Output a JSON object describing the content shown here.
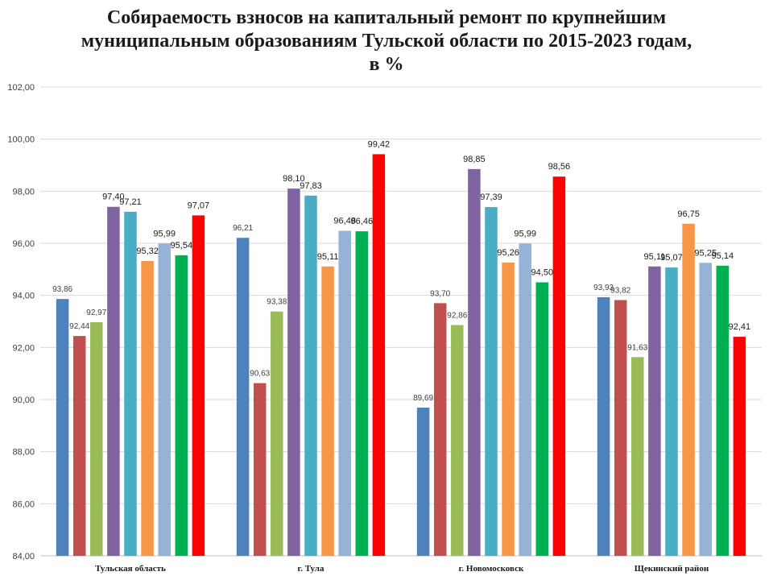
{
  "chart_data": {
    "type": "bar",
    "title_lines": [
      "Собираемость взносов на капитальный ремонт по крупнейшим",
      "муниципальным образованиям Тульской области по 2015-2023 годам,",
      "в %"
    ],
    "categories": [
      "Тульская область",
      "г. Тула",
      "г. Новомосковск",
      "Щекинский район"
    ],
    "series": [
      {
        "color": "#4f81bd",
        "values": [
          93.86,
          96.21,
          89.69,
          93.93
        ],
        "labels": [
          "93,86",
          "96,21",
          "89,69",
          "93,93"
        ]
      },
      {
        "color": "#c0504d",
        "values": [
          92.44,
          90.63,
          93.7,
          93.82
        ],
        "labels": [
          "92,44",
          "90,63",
          "93,70",
          "93,82"
        ]
      },
      {
        "color": "#9bbb59",
        "values": [
          92.97,
          93.38,
          92.86,
          91.63
        ],
        "labels": [
          "92,97",
          "93,38",
          "92,86",
          "91,63"
        ]
      },
      {
        "color": "#8064a2",
        "values": [
          97.4,
          98.1,
          98.85,
          95.11
        ],
        "labels": [
          "97,40",
          "98,10",
          "98,85",
          "95,11"
        ]
      },
      {
        "color": "#4bacc6",
        "values": [
          97.21,
          97.83,
          97.39,
          95.07
        ],
        "labels": [
          "97,21",
          "97,83",
          "97,39",
          "95,07"
        ]
      },
      {
        "color": "#f79646",
        "values": [
          95.32,
          95.11,
          95.26,
          96.75
        ],
        "labels": [
          "95,32",
          "95,11",
          "95,26",
          "96,75"
        ]
      },
      {
        "color": "#95b3d7",
        "values": [
          95.99,
          96.48,
          95.99,
          95.25
        ],
        "labels": [
          "95,99",
          "96,48",
          "95,99",
          "95,25"
        ]
      },
      {
        "color": "#00b050",
        "values": [
          95.54,
          96.46,
          94.5,
          95.14
        ],
        "labels": [
          "95,54",
          "96,46",
          "94,50",
          "95,14"
        ]
      },
      {
        "color": "#ff0000",
        "values": [
          97.07,
          99.42,
          98.56,
          92.41
        ],
        "labels": [
          "97,07",
          "99,42",
          "98,56",
          "92,41"
        ]
      }
    ],
    "ylim": [
      84,
      102
    ],
    "yticks": [
      "84,00",
      "86,00",
      "88,00",
      "90,00",
      "92,00",
      "94,00",
      "96,00",
      "98,00",
      "100,00",
      "102,00"
    ],
    "grid": true,
    "legend": "none"
  }
}
